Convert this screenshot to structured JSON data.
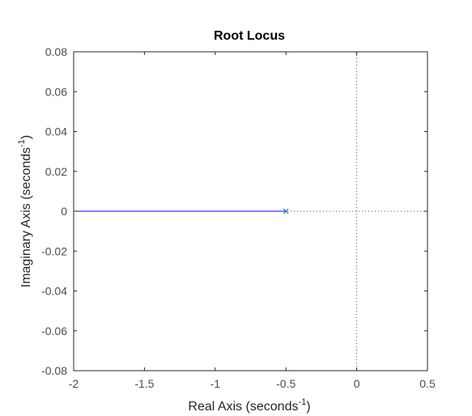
{
  "chart_data": {
    "type": "line",
    "title": "Root Locus",
    "xlabel": {
      "text": "Real Axis (seconds",
      "sup": "-1",
      "close": ")"
    },
    "ylabel": {
      "text": "Imaginary Axis (seconds",
      "sup": "-1",
      "close": ")"
    },
    "xlim": [
      -2,
      0.5
    ],
    "ylim": [
      -0.08,
      0.08
    ],
    "xticks": [
      -2,
      -1.5,
      -1,
      -0.5,
      0,
      0.5
    ],
    "xtick_labels": [
      "-2",
      "-1.5",
      "-1",
      "-0.5",
      "0",
      "0.5"
    ],
    "yticks": [
      -0.08,
      -0.06,
      -0.04,
      -0.02,
      0,
      0.02,
      0.04,
      0.06,
      0.08
    ],
    "ytick_labels": [
      "-0.08",
      "-0.06",
      "-0.04",
      "-0.02",
      "0",
      "0.02",
      "0.04",
      "0.06",
      "0.08"
    ],
    "grid": false,
    "series": [
      {
        "x": [
          -2,
          -0.5
        ],
        "y": [
          0,
          0
        ],
        "color": "#0000ff"
      }
    ],
    "poles": [
      {
        "x": -0.5,
        "y": 0,
        "marker": "x",
        "color": "#0072bd"
      }
    ],
    "reference_lines": {
      "x": 0,
      "y": 0,
      "style": "dotted",
      "color": "#555555"
    }
  }
}
